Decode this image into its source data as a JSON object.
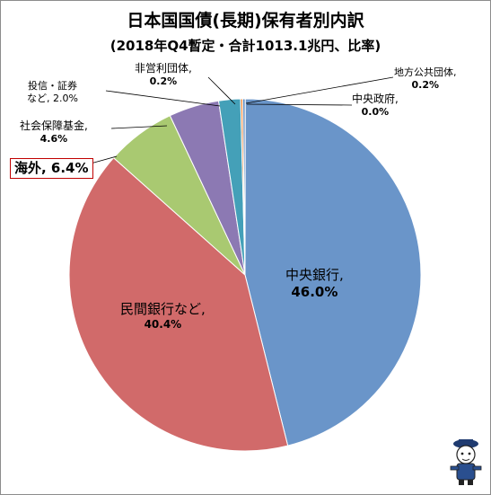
{
  "chart_data": {
    "type": "pie",
    "title": "日本国国債(長期)保有者別内訳",
    "subtitle": "(2018年Q4暫定・合計1013.1兆円、比率)",
    "slices": [
      {
        "label": "中央銀行,",
        "value": 46.0,
        "pct_text": "46.0%",
        "color": "#6a95c9"
      },
      {
        "label": "民間銀行など,",
        "value": 40.4,
        "pct_text": "40.4%",
        "color": "#d16a6a"
      },
      {
        "label": "海外,",
        "value": 6.4,
        "pct_text": "6.4%",
        "color": "#a9c971"
      },
      {
        "label": "社会保障基金,",
        "value": 4.6,
        "pct_text": "4.6%",
        "color": "#8c79b3"
      },
      {
        "label": "投信・証券など,",
        "value": 2.0,
        "pct_text": "2.0%",
        "color": "#44a0b8"
      },
      {
        "label": "非営利団体,",
        "value": 0.2,
        "pct_text": "0.2%",
        "color": "#f08a3c"
      },
      {
        "label": "地方公共団体,",
        "value": 0.2,
        "pct_text": "0.2%",
        "color": "#4a7ebb"
      },
      {
        "label": "中央政府,",
        "value": 0.0,
        "pct_text": "0.0%",
        "color": "#b94a48"
      }
    ],
    "labels": {
      "central_bank": {
        "name": "中央銀行,",
        "pct": "46.0%"
      },
      "private_banks": {
        "name": "民間銀行など,",
        "pct": "40.4%"
      },
      "overseas": {
        "text": "海外, 6.4%"
      },
      "social_security": {
        "name": "社会保障基金,",
        "pct": "4.6%"
      },
      "investment_trusts": {
        "line1": "投信・証券",
        "line2": "など, 2.0%"
      },
      "nonprofit": {
        "name": "非営利団体,",
        "pct": "0.2%"
      },
      "local_gov": {
        "name": "地方公共団体,",
        "pct": "0.2%"
      },
      "central_gov": {
        "name": "中央政府,",
        "pct": "0.0%"
      }
    },
    "start_angle": "12 o'clock",
    "direction": "clockwise",
    "legend": "none"
  }
}
